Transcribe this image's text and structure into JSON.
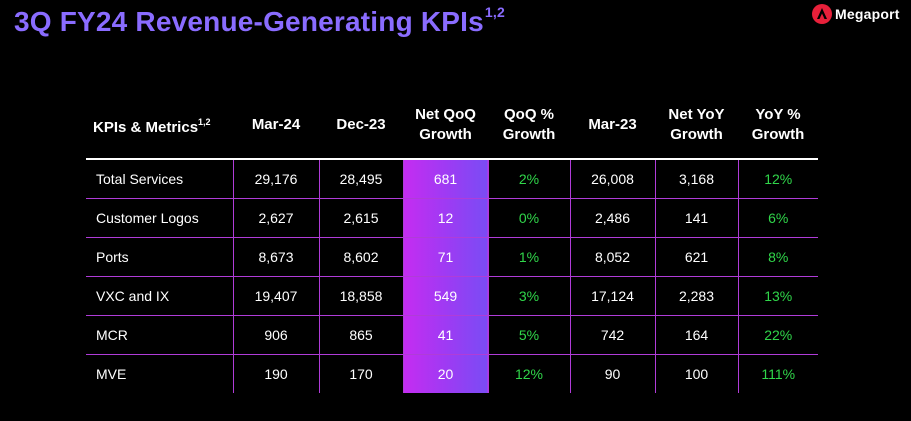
{
  "header": {
    "title": "3Q FY24 Revenue-Generating KPIs",
    "title_superscript": "1,2",
    "logo_text": "Megaport",
    "logo_icon": "megaport-logo-icon"
  },
  "colors": {
    "title": "#8a6cff",
    "highlight_start": "#c52cf2",
    "highlight_end": "#7a4cf4",
    "positive": "#30d64a",
    "row_border": "#b03cd8"
  },
  "table": {
    "headers": [
      {
        "line1": "KPIs & Metrics",
        "sup": "1,2",
        "line2": ""
      },
      {
        "line1": "Mar-24",
        "sup": "",
        "line2": ""
      },
      {
        "line1": "Dec-23",
        "sup": "",
        "line2": ""
      },
      {
        "line1": "Net QoQ",
        "sup": "",
        "line2": "Growth"
      },
      {
        "line1": "QoQ %",
        "sup": "",
        "line2": "Growth"
      },
      {
        "line1": "Mar-23",
        "sup": "",
        "line2": ""
      },
      {
        "line1": "Net YoY",
        "sup": "",
        "line2": "Growth"
      },
      {
        "line1": "YoY %",
        "sup": "",
        "line2": "Growth"
      }
    ],
    "rows": [
      [
        "Total Services",
        "29,176",
        "28,495",
        "681",
        "2%",
        "26,008",
        "3,168",
        "12%"
      ],
      [
        "Customer Logos",
        "2,627",
        "2,615",
        "12",
        "0%",
        "2,486",
        "141",
        "6%"
      ],
      [
        "Ports",
        "8,673",
        "8,602",
        "71",
        "1%",
        "8,052",
        "621",
        "8%"
      ],
      [
        "VXC and IX",
        "19,407",
        "18,858",
        "549",
        "3%",
        "17,124",
        "2,283",
        "13%"
      ],
      [
        "MCR",
        "906",
        "865",
        "41",
        "5%",
        "742",
        "164",
        "22%"
      ],
      [
        "MVE",
        "190",
        "170",
        "20",
        "12%",
        "90",
        "100",
        "111%"
      ]
    ]
  }
}
